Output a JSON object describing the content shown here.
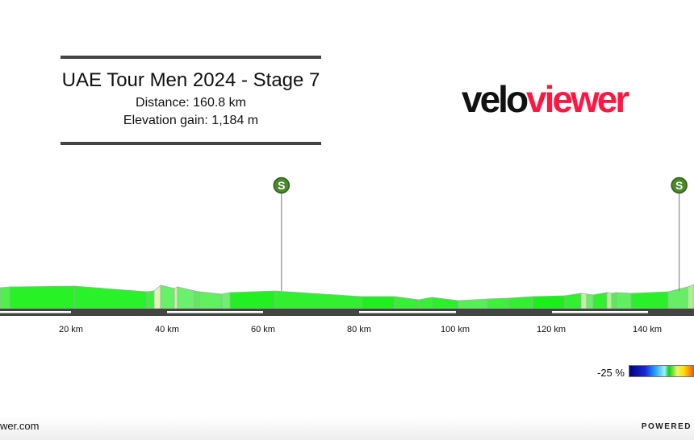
{
  "header": {
    "title": "UAE Tour Men 2024 - Stage 7",
    "distance": "Distance: 160.8 km",
    "elevation_gain": "Elevation gain: 1,184 m"
  },
  "logo": {
    "part1": "velo",
    "part2": "viewer",
    "color1": "#111111",
    "color2": "#ff1744"
  },
  "chart_data": {
    "type": "area",
    "xlabel": "",
    "ylabel": "",
    "x_ticks": [
      "20 km",
      "40 km",
      "60 km",
      "80 km",
      "100 km",
      "120 km",
      "140 km"
    ],
    "x_tick_values": [
      20,
      40,
      60,
      80,
      100,
      120,
      140
    ],
    "markers": [
      {
        "label": "S",
        "km": 64
      },
      {
        "label": "S",
        "km": 147
      }
    ],
    "gradient_legend": {
      "min_label": "-25 %"
    }
  },
  "footer": {
    "url": "wer.com",
    "powered": "POWERED"
  }
}
